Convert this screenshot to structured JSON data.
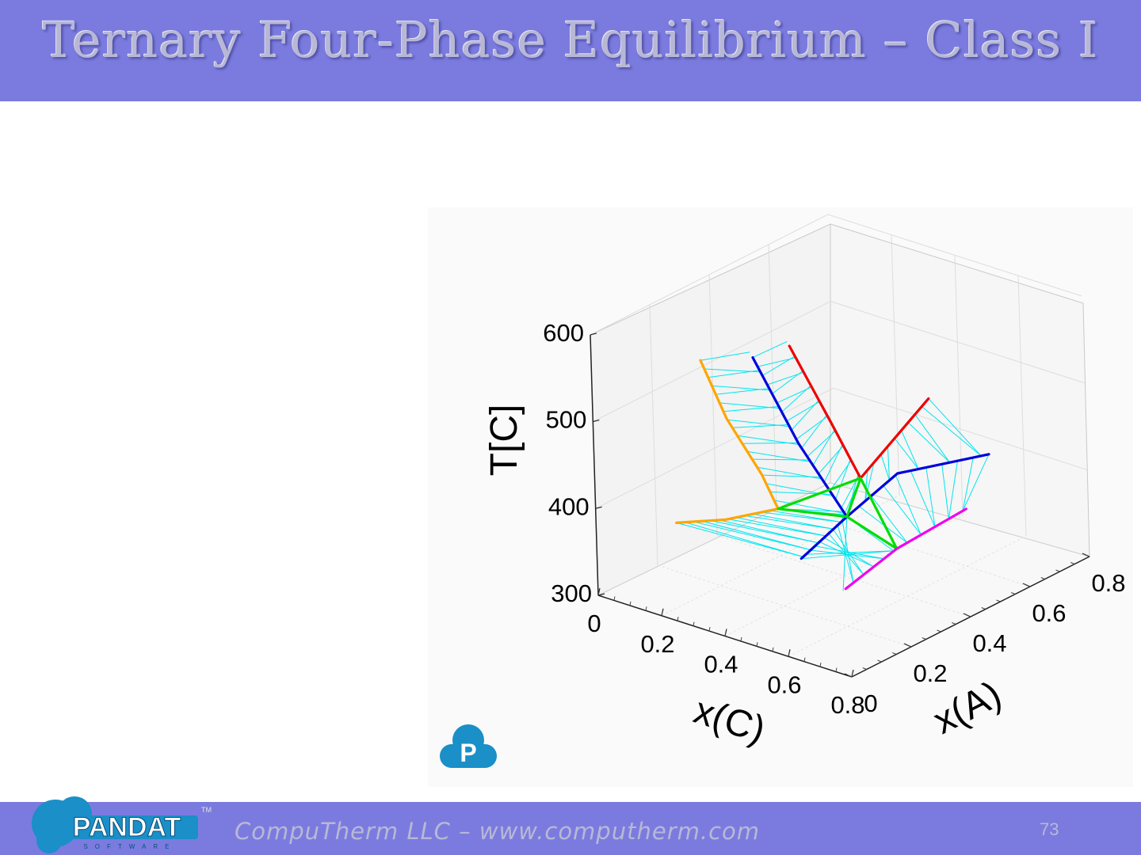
{
  "slide": {
    "title": "Ternary Four-Phase Equilibrium – Class I",
    "footer_text": "CompuTherm LLC – www.computherm.com",
    "page_number": "73",
    "logo_text": "PANDAT",
    "logo_sub": "SOFTWARE",
    "logo_tm": "TM",
    "badge_letter": "P"
  },
  "colors": {
    "header_bg": "#7b7bdf",
    "title_text": "#b8b8d6",
    "logo_blue": "#1a8fc8",
    "orange": "#ffa500",
    "red": "#ee0000",
    "blue": "#0000dd",
    "green": "#00dd00",
    "magenta": "#ee00ee",
    "cyan": "#00e5ee"
  },
  "chart_data": {
    "type": "3d-line",
    "title": "",
    "zlabel": "T[C]",
    "xlabel": "x(C)",
    "ylabel": "x(A)",
    "z_ticks": [
      "300",
      "400",
      "500",
      "600"
    ],
    "x_ticks": [
      "0",
      "0.2",
      "0.4",
      "0.6",
      "0.8"
    ],
    "y_ticks": [
      "0",
      "0.2",
      "0.4",
      "0.6",
      "0.8"
    ],
    "zlim": [
      300,
      600
    ],
    "xlim": [
      0,
      0.8
    ],
    "ylim": [
      0,
      0.8
    ],
    "grid": true,
    "series": [
      {
        "color": "orange",
        "points": [
          [
            0.31,
            0.04,
            600
          ],
          [
            0.33,
            0.1,
            525
          ],
          [
            0.36,
            0.18,
            450
          ],
          [
            0.37,
            0.22,
            405
          ],
          [
            0.26,
            0.16,
            390
          ],
          [
            0.16,
            0.1,
            385
          ]
        ]
      },
      {
        "color": "blue",
        "points": [
          [
            0.4,
            0.12,
            600
          ],
          [
            0.48,
            0.18,
            500
          ],
          [
            0.55,
            0.26,
            410
          ],
          [
            0.6,
            0.38,
            445
          ],
          [
            0.72,
            0.56,
            450
          ]
        ]
      },
      {
        "color": "blue",
        "points": [
          [
            0.55,
            0.26,
            410
          ],
          [
            0.42,
            0.24,
            350
          ]
        ]
      },
      {
        "color": "red",
        "points": [
          [
            0.46,
            0.18,
            610
          ],
          [
            0.5,
            0.27,
            510
          ],
          [
            0.53,
            0.33,
            440
          ],
          [
            0.61,
            0.48,
            515
          ]
        ]
      },
      {
        "color": "green",
        "points": [
          [
            0.37,
            0.22,
            405
          ],
          [
            0.53,
            0.33,
            440
          ],
          [
            0.55,
            0.26,
            410
          ],
          [
            0.37,
            0.22,
            405
          ]
        ]
      },
      {
        "color": "green",
        "points": [
          [
            0.53,
            0.33,
            440
          ],
          [
            0.6,
            0.37,
            360
          ],
          [
            0.55,
            0.26,
            410
          ]
        ]
      },
      {
        "color": "magenta",
        "points": [
          [
            0.52,
            0.28,
            320
          ],
          [
            0.6,
            0.37,
            360
          ],
          [
            0.7,
            0.5,
            395
          ]
        ]
      }
    ]
  }
}
